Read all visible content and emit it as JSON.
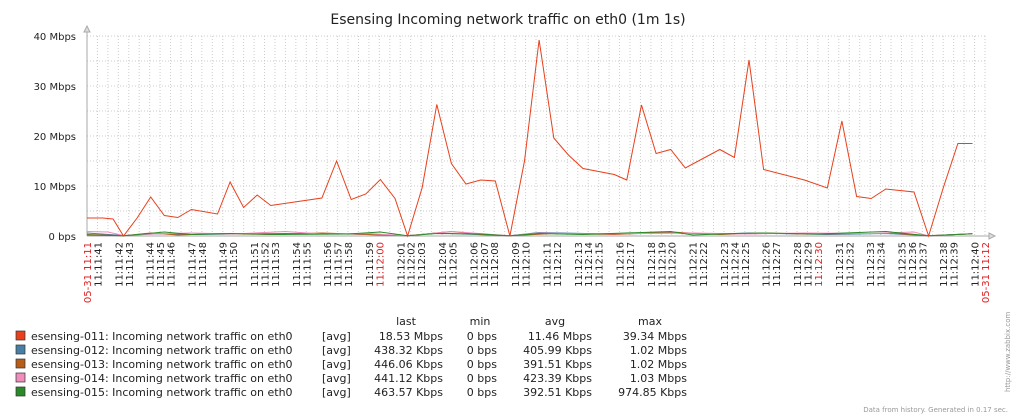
{
  "chart_data": {
    "type": "line",
    "title": "Esensing Incoming network traffic on eth0 (1m 1s)",
    "y_unit": "bps",
    "ylim": [
      0,
      40000000
    ],
    "y_ticks": [
      "0 bps",
      "10 Mbps",
      "20 Mbps",
      "30 Mbps",
      "40 Mbps"
    ],
    "x_start_label": "05-31 11:11",
    "x_end_label": "05-31 11:12",
    "x_red_labels": [
      "11:12:00",
      "11:12:30"
    ],
    "x_ticks": [
      "11:11:41",
      "11:11:42",
      "11:11:43",
      "11:11:44",
      "11:11:45",
      "11:11:46",
      "11:11:47",
      "11:11:48",
      "11:11:49",
      "11:11:50",
      "11:11:51",
      "11:11:52",
      "11:11:53",
      "11:11:54",
      "11:11:55",
      "11:11:56",
      "11:11:57",
      "11:11:58",
      "11:11:59",
      "11:12:00",
      "11:12:01",
      "11:12:02",
      "11:12:03",
      "11:12:04",
      "11:12:05",
      "11:12:06",
      "11:12:07",
      "11:12:08",
      "11:12:09",
      "11:12:10",
      "11:12:11",
      "11:12:12",
      "11:12:13",
      "11:12:14",
      "11:12:15",
      "11:12:16",
      "11:12:17",
      "11:12:18",
      "11:12:19",
      "11:12:20",
      "11:12:21",
      "11:12:22",
      "11:12:23",
      "11:12:24",
      "11:12:25",
      "11:12:26",
      "11:12:27",
      "11:12:28",
      "11:12:29",
      "11:12:30",
      "11:12:31",
      "11:12:32",
      "11:12:33",
      "11:12:34",
      "11:12:35",
      "11:12:36",
      "11:12:37",
      "11:12:38",
      "11:12:39",
      "11:12:40"
    ],
    "grid": true,
    "legend_headers": [
      "last",
      "min",
      "avg",
      "max"
    ],
    "series": [
      {
        "name": "esensing-011: Incoming network traffic on eth0",
        "func": "[avg]",
        "color": "#e8401c",
        "last": "18.53 Mbps",
        "min": "0 bps",
        "avg": "11.46 Mbps",
        "max": "39.34 Mbps",
        "points": [
          [
            0,
            3.6
          ],
          [
            1.5,
            3.6
          ],
          [
            2.5,
            3.4
          ],
          [
            3.5,
            0
          ],
          [
            4.8,
            3.6
          ],
          [
            6.1,
            7.8
          ],
          [
            7.4,
            4.1
          ],
          [
            8.7,
            3.7
          ],
          [
            10,
            5.3
          ],
          [
            12.5,
            4.4
          ],
          [
            13.7,
            10.8
          ],
          [
            15,
            5.7
          ],
          [
            16.3,
            8.2
          ],
          [
            17.6,
            6.1
          ],
          [
            22.5,
            7.6
          ],
          [
            23.9,
            15.0
          ],
          [
            25.3,
            7.3
          ],
          [
            26.7,
            8.4
          ],
          [
            28.1,
            11.3
          ],
          [
            29.5,
            7.5
          ],
          [
            30.7,
            0
          ],
          [
            32.1,
            9.7
          ],
          [
            33.5,
            26.3
          ],
          [
            34.9,
            14.5
          ],
          [
            36.3,
            10.4
          ],
          [
            37.7,
            11.2
          ],
          [
            39.1,
            11.0
          ],
          [
            40.5,
            0
          ],
          [
            41.9,
            15.0
          ],
          [
            43.3,
            39.2
          ],
          [
            44.7,
            19.6
          ],
          [
            46.1,
            16.2
          ],
          [
            47.5,
            13.5
          ],
          [
            50.5,
            12.3
          ],
          [
            51.7,
            11.2
          ],
          [
            53.1,
            26.2
          ],
          [
            54.5,
            16.5
          ],
          [
            55.9,
            17.3
          ],
          [
            57.3,
            13.6
          ],
          [
            60.6,
            17.3
          ],
          [
            62,
            15.7
          ],
          [
            63.4,
            35.2
          ],
          [
            64.8,
            13.3
          ],
          [
            68.7,
            11.2
          ],
          [
            70.9,
            9.6
          ],
          [
            72.3,
            23.0
          ],
          [
            73.7,
            7.9
          ],
          [
            75.1,
            7.5
          ],
          [
            76.5,
            9.4
          ],
          [
            79.2,
            8.8
          ],
          [
            80.6,
            0
          ],
          [
            82,
            9.6
          ],
          [
            83.4,
            18.5
          ],
          [
            84.8,
            18.5
          ]
        ]
      },
      {
        "name": "esensing-012: Incoming network traffic on eth0",
        "func": "[avg]",
        "color": "#4a7fa5",
        "last": "438.32 Kbps",
        "min": "0 bps",
        "avg": "405.99 Kbps",
        "max": "1.02 Mbps",
        "points": [
          [
            0,
            0.6
          ],
          [
            3.5,
            0.1
          ],
          [
            7.4,
            0.5
          ],
          [
            10,
            0.3
          ],
          [
            14,
            0.4
          ],
          [
            19,
            0.5
          ],
          [
            25,
            0.4
          ],
          [
            30.7,
            0.05
          ],
          [
            33.5,
            0.6
          ],
          [
            40.5,
            0.05
          ],
          [
            43.3,
            0.7
          ],
          [
            50,
            0.4
          ],
          [
            55.9,
            0.6
          ],
          [
            60.6,
            0.4
          ],
          [
            63.4,
            0.6
          ],
          [
            70.9,
            0.3
          ],
          [
            76.5,
            0.5
          ],
          [
            80.6,
            0.05
          ],
          [
            84.8,
            0.44
          ]
        ]
      },
      {
        "name": "esensing-013: Incoming network traffic on eth0",
        "func": "[avg]",
        "color": "#b85c1a",
        "last": "446.06 Kbps",
        "min": "0 bps",
        "avg": "391.51 Kbps",
        "max": "1.02 Mbps",
        "points": [
          [
            0,
            0.3
          ],
          [
            3.5,
            0.05
          ],
          [
            6.1,
            0.6
          ],
          [
            8.7,
            0.2
          ],
          [
            12.5,
            0.5
          ],
          [
            17.6,
            0.3
          ],
          [
            22.5,
            0.6
          ],
          [
            27,
            0.3
          ],
          [
            30.7,
            0.05
          ],
          [
            34.9,
            0.9
          ],
          [
            37.7,
            0.3
          ],
          [
            40.5,
            0.05
          ],
          [
            44.7,
            0.5
          ],
          [
            50.5,
            0.3
          ],
          [
            55.9,
            0.8
          ],
          [
            60.6,
            0.3
          ],
          [
            64.8,
            0.6
          ],
          [
            68.7,
            0.4
          ],
          [
            73.7,
            0.5
          ],
          [
            77.5,
            0.5
          ],
          [
            80.6,
            0.05
          ],
          [
            84.8,
            0.45
          ]
        ]
      },
      {
        "name": "esensing-014: Incoming network traffic on eth0",
        "func": "[avg]",
        "color": "#f08dbc",
        "last": "441.12 Kbps",
        "min": "0 bps",
        "avg": "423.39 Kbps",
        "max": "1.03 Mbps",
        "points": [
          [
            0,
            0.9
          ],
          [
            2,
            0.8
          ],
          [
            3.5,
            0.1
          ],
          [
            6.1,
            0.4
          ],
          [
            10,
            0.6
          ],
          [
            14,
            0.4
          ],
          [
            19,
            0.9
          ],
          [
            22.5,
            0.4
          ],
          [
            27,
            0.5
          ],
          [
            30.7,
            0.05
          ],
          [
            35,
            0.9
          ],
          [
            40.5,
            0.05
          ],
          [
            43.3,
            0.6
          ],
          [
            48,
            0.4
          ],
          [
            53,
            0.5
          ],
          [
            58,
            0.6
          ],
          [
            63.4,
            0.4
          ],
          [
            68.7,
            0.6
          ],
          [
            75,
            0.5
          ],
          [
            79.2,
            0.8
          ],
          [
            80.6,
            0.05
          ],
          [
            84.8,
            0.44
          ]
        ]
      },
      {
        "name": "esensing-015: Incoming network traffic on eth0",
        "func": "[avg]",
        "color": "#2a8a2a",
        "last": "463.57 Kbps",
        "min": "0 bps",
        "avg": "392.51 Kbps",
        "max": "974.85 Kbps",
        "points": [
          [
            0,
            0.2
          ],
          [
            3.5,
            0.05
          ],
          [
            7.4,
            0.8
          ],
          [
            10,
            0.3
          ],
          [
            13.7,
            0.5
          ],
          [
            18,
            0.3
          ],
          [
            25,
            0.4
          ],
          [
            28.1,
            0.8
          ],
          [
            30.7,
            0.05
          ],
          [
            33.5,
            0.5
          ],
          [
            37.7,
            0.4
          ],
          [
            40.5,
            0.05
          ],
          [
            43.3,
            0.5
          ],
          [
            47.5,
            0.3
          ],
          [
            55.9,
            0.9
          ],
          [
            58,
            0.2
          ],
          [
            62,
            0.5
          ],
          [
            64.8,
            0.6
          ],
          [
            70,
            0.4
          ],
          [
            76.5,
            0.9
          ],
          [
            80.6,
            0.05
          ],
          [
            84.8,
            0.46
          ]
        ]
      }
    ],
    "footer": "Data from history. Generated in 0.17 sec.",
    "watermark": "http://www.zabbix.com"
  }
}
